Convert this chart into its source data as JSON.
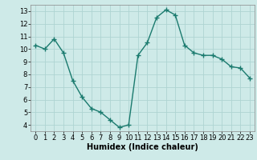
{
  "x": [
    0,
    1,
    2,
    3,
    4,
    5,
    6,
    7,
    8,
    9,
    10,
    11,
    12,
    13,
    14,
    15,
    16,
    17,
    18,
    19,
    20,
    21,
    22,
    23
  ],
  "y": [
    10.3,
    10.0,
    10.8,
    9.7,
    7.5,
    6.2,
    5.3,
    5.0,
    4.4,
    3.8,
    4.0,
    9.5,
    10.5,
    12.5,
    13.1,
    12.7,
    10.3,
    9.7,
    9.5,
    9.5,
    9.2,
    8.6,
    8.5,
    7.7
  ],
  "line_color": "#1a7a6e",
  "marker": "+",
  "bg_color": "#ceeae8",
  "grid_color": "#aed4d2",
  "xlabel": "Humidex (Indice chaleur)",
  "ylim": [
    3.5,
    13.5
  ],
  "xlim": [
    -0.5,
    23.5
  ],
  "yticks": [
    4,
    5,
    6,
    7,
    8,
    9,
    10,
    11,
    12,
    13
  ],
  "xticks": [
    0,
    1,
    2,
    3,
    4,
    5,
    6,
    7,
    8,
    9,
    10,
    11,
    12,
    13,
    14,
    15,
    16,
    17,
    18,
    19,
    20,
    21,
    22,
    23
  ],
  "xlabel_fontsize": 7,
  "tick_fontsize": 6,
  "line_width": 1.0,
  "marker_size": 4,
  "marker_ew": 1.0
}
